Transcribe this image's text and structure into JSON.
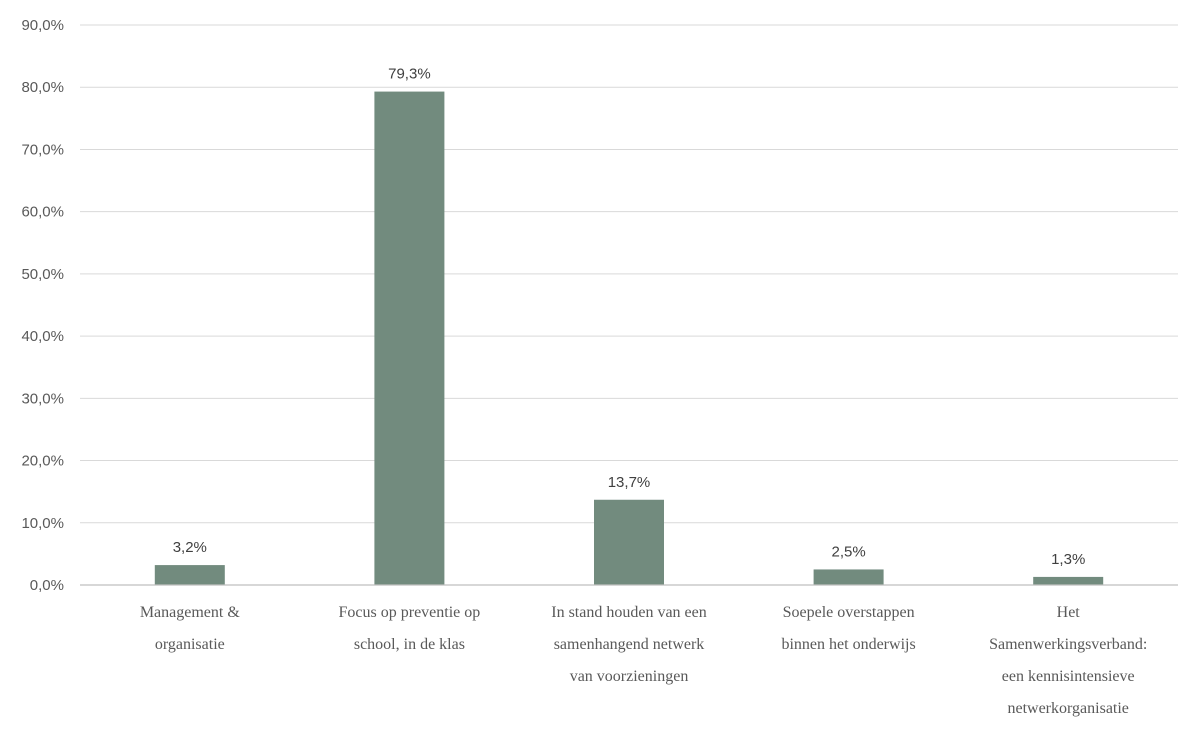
{
  "chart_data": {
    "type": "bar",
    "title": "",
    "xlabel": "",
    "ylabel": "",
    "ylim": [
      0,
      90
    ],
    "yticks": [
      "0,0%",
      "10,0%",
      "20,0%",
      "30,0%",
      "40,0%",
      "50,0%",
      "60,0%",
      "70,0%",
      "80,0%",
      "90,0%"
    ],
    "grid": true,
    "legend": "none",
    "bar_color": "#728b7e",
    "categories": [
      [
        "Management &",
        "organisatie"
      ],
      [
        "Focus op preventie op",
        "school, in de klas"
      ],
      [
        "In stand houden van een",
        "samenhangend netwerk",
        "van voorzieningen"
      ],
      [
        "Soepele overstappen",
        "binnen het onderwijs"
      ],
      [
        "Het",
        "Samenwerkingsverband:",
        "een kennisintensieve",
        "netwerkorganisatie"
      ]
    ],
    "values": [
      3.2,
      79.3,
      13.7,
      2.5,
      1.3
    ],
    "data_labels": [
      "3,2%",
      "79,3%",
      "13,7%",
      "2,5%",
      "1,3%"
    ]
  }
}
